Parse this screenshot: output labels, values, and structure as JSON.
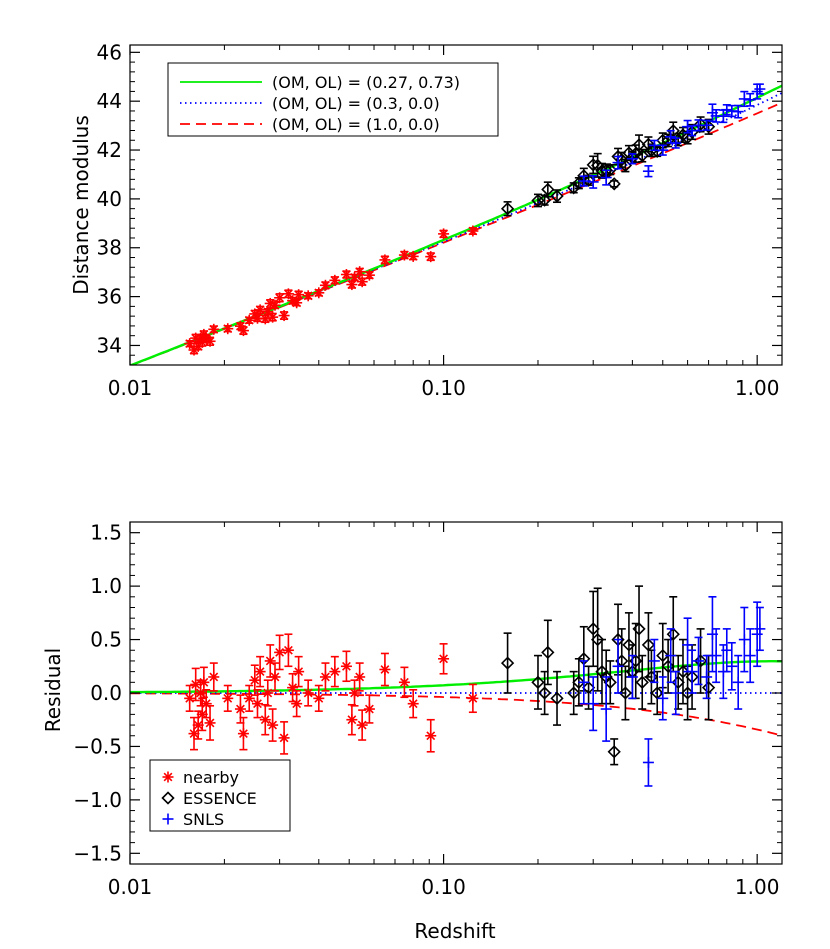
{
  "colors": {
    "nearby": "#ff0000",
    "essence": "#000000",
    "snls": "#0000ff",
    "model_a": "#00ee00",
    "model_b": "#0000ff",
    "model_c": "#ff0000"
  },
  "chart_data": [
    {
      "type": "scatter",
      "panel": "top",
      "xscale": "log",
      "xlim": [
        0.01,
        1.2
      ],
      "ylim": [
        33.2,
        46.3
      ],
      "xlabel": "",
      "ylabel": "Distance modulus",
      "xticks": [
        0.01,
        0.1,
        1.0
      ],
      "xtick_labels": [
        "0.01",
        "0.10",
        "1.00"
      ],
      "yticks": [
        34,
        36,
        38,
        40,
        42,
        44,
        46
      ],
      "ytick_labels": [
        "34",
        "36",
        "38",
        "40",
        "42",
        "44",
        "46"
      ],
      "grid": false,
      "legend_position": "top-left",
      "models": [
        {
          "name": "(OM, OL) = (0.27, 0.73)",
          "om": 0.27,
          "ol": 0.73,
          "color": "#00ee00",
          "style": "solid"
        },
        {
          "name": "(OM, OL) = (0.3, 0.0)",
          "om": 0.3,
          "ol": 0.0,
          "color": "#0000ff",
          "style": "dotted"
        },
        {
          "name": "(OM, OL) = (1.0, 0.0)",
          "om": 1.0,
          "ol": 0.0,
          "color": "#ff0000",
          "style": "dashed"
        }
      ]
    },
    {
      "type": "scatter",
      "panel": "bottom",
      "xscale": "log",
      "xlim": [
        0.01,
        1.2
      ],
      "ylim": [
        -1.6,
        1.6
      ],
      "xlabel": "Redshift",
      "ylabel": "Residual",
      "xticks": [
        0.01,
        0.1,
        1.0
      ],
      "xtick_labels": [
        "0.01",
        "0.10",
        "1.00"
      ],
      "yticks": [
        -1.5,
        -1.0,
        -0.5,
        0.0,
        0.5,
        1.0,
        1.5
      ],
      "ytick_labels": [
        "−1.5",
        "−1.0",
        "−0.5",
        "0.0",
        "0.5",
        "1.0",
        "1.5"
      ],
      "grid": false,
      "legend_position": "bottom-left",
      "series": [
        {
          "name": "nearby",
          "marker": "asterisk",
          "color": "#ff0000",
          "points": [
            [
              0.0155,
              -0.05,
              0.12
            ],
            [
              0.016,
              -0.38,
              0.15
            ],
            [
              0.0162,
              0.08,
              0.15
            ],
            [
              0.0165,
              -0.3,
              0.13
            ],
            [
              0.0168,
              0.0,
              0.12
            ],
            [
              0.017,
              -0.2,
              0.15
            ],
            [
              0.0172,
              0.1,
              0.14
            ],
            [
              0.0175,
              -0.1,
              0.13
            ],
            [
              0.018,
              -0.28,
              0.16
            ],
            [
              0.0185,
              0.15,
              0.13
            ],
            [
              0.0205,
              -0.05,
              0.12
            ],
            [
              0.0225,
              -0.15,
              0.13
            ],
            [
              0.023,
              -0.38,
              0.15
            ],
            [
              0.024,
              -0.05,
              0.12
            ],
            [
              0.025,
              0.12,
              0.14
            ],
            [
              0.0255,
              -0.1,
              0.13
            ],
            [
              0.026,
              0.2,
              0.14
            ],
            [
              0.027,
              -0.25,
              0.14
            ],
            [
              0.0275,
              0.0,
              0.12
            ],
            [
              0.028,
              0.3,
              0.15
            ],
            [
              0.0285,
              -0.3,
              0.15
            ],
            [
              0.029,
              0.15,
              0.13
            ],
            [
              0.03,
              0.38,
              0.16
            ],
            [
              0.031,
              -0.42,
              0.15
            ],
            [
              0.032,
              0.4,
              0.15
            ],
            [
              0.033,
              0.05,
              0.13
            ],
            [
              0.034,
              -0.1,
              0.12
            ],
            [
              0.0345,
              0.2,
              0.14
            ],
            [
              0.037,
              0.0,
              0.12
            ],
            [
              0.04,
              -0.05,
              0.12
            ],
            [
              0.042,
              0.15,
              0.13
            ],
            [
              0.045,
              0.2,
              0.14
            ],
            [
              0.049,
              0.25,
              0.14
            ],
            [
              0.051,
              -0.25,
              0.14
            ],
            [
              0.052,
              0.0,
              0.12
            ],
            [
              0.054,
              0.15,
              0.13
            ],
            [
              0.055,
              -0.3,
              0.14
            ],
            [
              0.058,
              -0.15,
              0.13
            ],
            [
              0.065,
              0.22,
              0.15
            ],
            [
              0.075,
              0.1,
              0.14
            ],
            [
              0.08,
              -0.1,
              0.13
            ],
            [
              0.091,
              -0.4,
              0.15
            ],
            [
              0.1,
              0.32,
              0.14
            ],
            [
              0.124,
              -0.05,
              0.13
            ]
          ]
        },
        {
          "name": "ESSENCE",
          "marker": "diamond",
          "color": "#000000",
          "points": [
            [
              0.16,
              0.28,
              0.28
            ],
            [
              0.2,
              0.1,
              0.25
            ],
            [
              0.21,
              0.0,
              0.2
            ],
            [
              0.215,
              0.38,
              0.3
            ],
            [
              0.23,
              -0.05,
              0.25
            ],
            [
              0.26,
              0.0,
              0.2
            ],
            [
              0.27,
              0.1,
              0.22
            ],
            [
              0.28,
              0.32,
              0.3
            ],
            [
              0.29,
              0.05,
              0.2
            ],
            [
              0.3,
              0.6,
              0.35
            ],
            [
              0.31,
              0.5,
              0.48
            ],
            [
              0.32,
              0.2,
              0.3
            ],
            [
              0.33,
              0.15,
              0.25
            ],
            [
              0.34,
              0.1,
              0.2
            ],
            [
              0.35,
              -0.55,
              0.12
            ],
            [
              0.36,
              0.5,
              0.33
            ],
            [
              0.37,
              0.3,
              0.3
            ],
            [
              0.38,
              0.0,
              0.25
            ],
            [
              0.39,
              0.45,
              0.3
            ],
            [
              0.4,
              0.2,
              0.25
            ],
            [
              0.41,
              0.3,
              0.35
            ],
            [
              0.42,
              0.6,
              0.4
            ],
            [
              0.43,
              0.1,
              0.25
            ],
            [
              0.45,
              0.45,
              0.3
            ],
            [
              0.46,
              0.15,
              0.25
            ],
            [
              0.48,
              0.0,
              0.2
            ],
            [
              0.5,
              0.35,
              0.3
            ],
            [
              0.52,
              0.25,
              0.25
            ],
            [
              0.54,
              0.55,
              0.35
            ],
            [
              0.56,
              0.1,
              0.25
            ],
            [
              0.58,
              0.2,
              0.3
            ],
            [
              0.6,
              0.0,
              0.25
            ],
            [
              0.62,
              0.15,
              0.3
            ],
            [
              0.66,
              0.3,
              0.3
            ],
            [
              0.7,
              0.05,
              0.3
            ]
          ]
        },
        {
          "name": "SNLS",
          "marker": "plus",
          "color": "#0000ff",
          "points": [
            [
              0.28,
              0.1,
              0.2
            ],
            [
              0.3,
              -0.1,
              0.25
            ],
            [
              0.33,
              -0.15,
              0.3
            ],
            [
              0.36,
              0.25,
              0.25
            ],
            [
              0.4,
              0.15,
              0.2
            ],
            [
              0.45,
              -0.65,
              0.22
            ],
            [
              0.47,
              0.3,
              0.2
            ],
            [
              0.5,
              -0.05,
              0.2
            ],
            [
              0.53,
              0.35,
              0.25
            ],
            [
              0.55,
              0.0,
              0.2
            ],
            [
              0.6,
              0.45,
              0.25
            ],
            [
              0.62,
              0.2,
              0.2
            ],
            [
              0.65,
              0.3,
              0.22
            ],
            [
              0.69,
              0.15,
              0.2
            ],
            [
              0.72,
              0.55,
              0.35
            ],
            [
              0.74,
              0.35,
              0.25
            ],
            [
              0.78,
              0.2,
              0.25
            ],
            [
              0.8,
              0.4,
              0.2
            ],
            [
              0.83,
              0.25,
              0.22
            ],
            [
              0.87,
              0.1,
              0.25
            ],
            [
              0.91,
              0.5,
              0.3
            ],
            [
              0.95,
              0.35,
              0.25
            ],
            [
              1.0,
              0.55,
              0.3
            ],
            [
              1.02,
              0.6,
              0.2
            ]
          ]
        }
      ]
    }
  ]
}
